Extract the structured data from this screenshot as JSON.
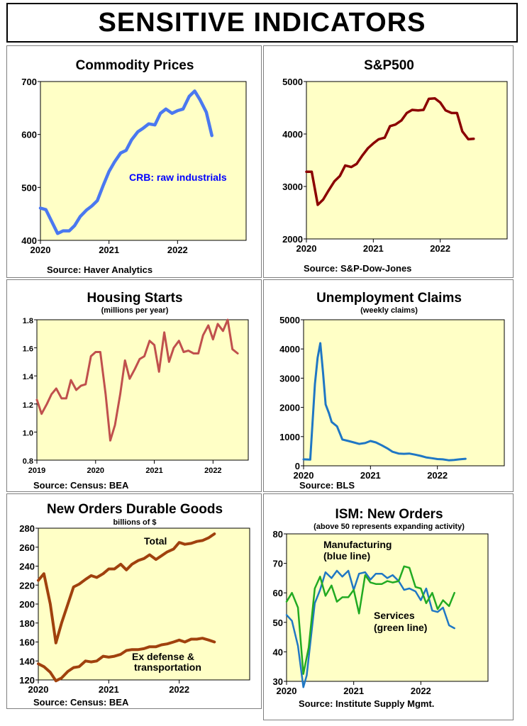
{
  "page_title": "SENSITIVE INDICATORS",
  "chart_data": [
    {
      "id": "commodity",
      "type": "line",
      "title": "Commodity Prices",
      "subtitle": "",
      "source": "Source: Haver Analytics",
      "ylim": [
        400,
        700
      ],
      "xlim": [
        2020,
        2023
      ],
      "y_ticks": [
        "700",
        "600",
        "500",
        "400"
      ],
      "x_ticks": [
        "2020",
        "2021",
        "2022"
      ],
      "grid": false,
      "series": [
        {
          "name": "CRB: raw industrials",
          "color": "#4a78f0",
          "x": [
            2020.0,
            2020.08,
            2020.25,
            2020.33,
            2020.42,
            2020.5,
            2020.58,
            2020.67,
            2020.75,
            2020.83,
            2020.92,
            2021.0,
            2021.08,
            2021.17,
            2021.25,
            2021.33,
            2021.42,
            2021.5,
            2021.58,
            2021.67,
            2021.75,
            2021.83,
            2021.92,
            2022.0,
            2022.08,
            2022.17,
            2022.25,
            2022.33,
            2022.42,
            2022.5
          ],
          "y": [
            461,
            458,
            413,
            418,
            418,
            428,
            445,
            457,
            465,
            475,
            505,
            530,
            548,
            565,
            570,
            590,
            605,
            612,
            620,
            618,
            640,
            648,
            640,
            645,
            648,
            672,
            682,
            665,
            642,
            598
          ]
        }
      ],
      "annotations": [
        {
          "text": "CRB: raw industrials",
          "color": "#0000ff"
        }
      ]
    },
    {
      "id": "sp500",
      "type": "line",
      "title": "S&P500",
      "subtitle": "",
      "source": "Source: S&P-Dow-Jones",
      "ylim": [
        2000,
        5000
      ],
      "xlim": [
        2020,
        2023
      ],
      "y_ticks": [
        "5000",
        "4000",
        "3000",
        "2000"
      ],
      "x_ticks": [
        "2020",
        "2021",
        "2022"
      ],
      "grid": false,
      "series": [
        {
          "name": "",
          "color": "#8b0000",
          "x": [
            2020.0,
            2020.08,
            2020.17,
            2020.25,
            2020.33,
            2020.42,
            2020.5,
            2020.58,
            2020.67,
            2020.75,
            2020.83,
            2020.92,
            2021.0,
            2021.08,
            2021.17,
            2021.25,
            2021.33,
            2021.42,
            2021.5,
            2021.58,
            2021.67,
            2021.75,
            2021.83,
            2021.92,
            2022.0,
            2022.08,
            2022.17,
            2022.25,
            2022.33,
            2022.42,
            2022.5
          ],
          "y": [
            3280,
            3280,
            2650,
            2750,
            2920,
            3100,
            3200,
            3400,
            3370,
            3430,
            3580,
            3730,
            3820,
            3900,
            3930,
            4150,
            4180,
            4260,
            4400,
            4460,
            4450,
            4460,
            4670,
            4680,
            4600,
            4450,
            4400,
            4400,
            4050,
            3900,
            3910
          ]
        }
      ],
      "annotations": []
    },
    {
      "id": "housing",
      "type": "line",
      "title": "Housing Starts",
      "subtitle": "(millions per year)",
      "source": "Source: Census: BEA",
      "ylim": [
        0.8,
        1.8
      ],
      "xlim": [
        2019,
        2022.6
      ],
      "y_ticks": [
        "1.8",
        "1.6",
        "1.4",
        "1.2",
        "1.0",
        "0.8"
      ],
      "x_ticks": [
        "2019",
        "2020",
        "2021",
        "2022"
      ],
      "grid": false,
      "series": [
        {
          "name": "",
          "color": "#c0504d",
          "x": [
            2019.0,
            2019.08,
            2019.17,
            2019.25,
            2019.33,
            2019.42,
            2019.5,
            2019.58,
            2019.67,
            2019.75,
            2019.83,
            2019.92,
            2020.0,
            2020.08,
            2020.17,
            2020.25,
            2020.33,
            2020.42,
            2020.5,
            2020.58,
            2020.67,
            2020.75,
            2020.83,
            2020.92,
            2021.0,
            2021.08,
            2021.17,
            2021.25,
            2021.33,
            2021.42,
            2021.5,
            2021.58,
            2021.67,
            2021.75,
            2021.83,
            2021.92,
            2022.0,
            2022.08,
            2022.17,
            2022.25,
            2022.33,
            2022.42
          ],
          "y": [
            1.23,
            1.13,
            1.2,
            1.27,
            1.31,
            1.24,
            1.24,
            1.37,
            1.3,
            1.33,
            1.34,
            1.54,
            1.57,
            1.57,
            1.27,
            0.94,
            1.05,
            1.27,
            1.51,
            1.38,
            1.45,
            1.52,
            1.54,
            1.65,
            1.62,
            1.43,
            1.71,
            1.5,
            1.6,
            1.65,
            1.57,
            1.58,
            1.56,
            1.56,
            1.69,
            1.76,
            1.66,
            1.77,
            1.72,
            1.8,
            1.59,
            1.56
          ]
        }
      ],
      "annotations": []
    },
    {
      "id": "claims",
      "type": "line",
      "title": "Unemployment Claims",
      "subtitle": "(weekly claims)",
      "source": "Source: BLS",
      "ylim": [
        0,
        5000
      ],
      "xlim": [
        2020,
        2023
      ],
      "y_ticks": [
        "5000",
        "4000",
        "3000",
        "2000",
        "1000",
        "0"
      ],
      "x_ticks": [
        "2020",
        "2021",
        "2022"
      ],
      "grid": false,
      "series": [
        {
          "name": "",
          "color": "#1f77c4",
          "x": [
            2020.0,
            2020.1,
            2020.17,
            2020.21,
            2020.25,
            2020.29,
            2020.33,
            2020.38,
            2020.42,
            2020.5,
            2020.58,
            2020.67,
            2020.75,
            2020.83,
            2020.92,
            2021.0,
            2021.08,
            2021.17,
            2021.25,
            2021.33,
            2021.42,
            2021.5,
            2021.58,
            2021.67,
            2021.75,
            2021.83,
            2021.92,
            2022.0,
            2022.08,
            2022.17,
            2022.25,
            2022.33,
            2022.42
          ],
          "y": [
            220,
            210,
            2800,
            3700,
            4200,
            3200,
            2100,
            1800,
            1500,
            1350,
            900,
            850,
            800,
            750,
            780,
            850,
            800,
            700,
            600,
            480,
            420,
            410,
            420,
            380,
            340,
            290,
            260,
            230,
            220,
            190,
            200,
            220,
            240
          ]
        }
      ],
      "annotations": []
    },
    {
      "id": "durable",
      "type": "line",
      "title": "New Orders Durable Goods",
      "subtitle": "billions of $",
      "source": "Source: Census: BEA",
      "ylim": [
        120,
        280
      ],
      "xlim": [
        2020,
        2023
      ],
      "y_ticks": [
        "280",
        "260",
        "240",
        "220",
        "200",
        "180",
        "160",
        "140",
        "120"
      ],
      "x_ticks": [
        "2020",
        "2021",
        "2022"
      ],
      "grid": false,
      "series": [
        {
          "name": "Total",
          "color": "#a0410d",
          "x": [
            2020.0,
            2020.08,
            2020.17,
            2020.25,
            2020.33,
            2020.42,
            2020.5,
            2020.58,
            2020.67,
            2020.75,
            2020.83,
            2020.92,
            2021.0,
            2021.08,
            2021.17,
            2021.25,
            2021.33,
            2021.42,
            2021.5,
            2021.58,
            2021.67,
            2021.75,
            2021.83,
            2021.92,
            2022.0,
            2022.08,
            2022.17,
            2022.25,
            2022.33,
            2022.42,
            2022.5
          ],
          "y": [
            225,
            232,
            200,
            159,
            180,
            200,
            218,
            221,
            226,
            230,
            228,
            232,
            237,
            237,
            242,
            236,
            242,
            246,
            248,
            252,
            247,
            251,
            255,
            258,
            265,
            263,
            264,
            266,
            267,
            270,
            274
          ]
        },
        {
          "name": "Ex defense & transportation",
          "color": "#a0410d",
          "x": [
            2020.0,
            2020.08,
            2020.17,
            2020.25,
            2020.33,
            2020.42,
            2020.5,
            2020.58,
            2020.67,
            2020.75,
            2020.83,
            2020.92,
            2021.0,
            2021.08,
            2021.17,
            2021.25,
            2021.33,
            2021.42,
            2021.5,
            2021.58,
            2021.67,
            2021.75,
            2021.83,
            2021.92,
            2022.0,
            2022.08,
            2022.17,
            2022.25,
            2022.33,
            2022.42,
            2022.5
          ],
          "y": [
            137,
            134,
            128,
            119,
            122,
            129,
            133,
            134,
            140,
            139,
            140,
            145,
            144,
            145,
            147,
            151,
            152,
            152,
            153,
            155,
            155,
            157,
            158,
            160,
            162,
            160,
            163,
            163,
            164,
            162,
            160
          ]
        }
      ],
      "annotations": [
        {
          "text": "Total"
        },
        {
          "text": "Ex defense &"
        },
        {
          "text": "transportation"
        }
      ]
    },
    {
      "id": "ism",
      "type": "line",
      "title": "ISM: New Orders",
      "subtitle": "(above 50 represents expanding activity)",
      "source": "Source: Institute Supply Mgmt.",
      "ylim": [
        30,
        80
      ],
      "xlim": [
        2020,
        2023
      ],
      "y_ticks": [
        "80",
        "70",
        "60",
        "50",
        "40",
        "30"
      ],
      "x_ticks": [
        "2020",
        "2021",
        "2022"
      ],
      "grid": false,
      "series": [
        {
          "name": "Manufacturing",
          "color": "#1f77c4",
          "x": [
            2020.0,
            2020.08,
            2020.17,
            2020.25,
            2020.3,
            2020.42,
            2020.5,
            2020.58,
            2020.67,
            2020.75,
            2020.83,
            2020.92,
            2021.0,
            2021.08,
            2021.17,
            2021.25,
            2021.33,
            2021.42,
            2021.5,
            2021.58,
            2021.67,
            2021.75,
            2021.83,
            2021.92,
            2022.0,
            2022.08,
            2022.17,
            2022.25,
            2022.33,
            2022.42,
            2022.5
          ],
          "y": [
            52.5,
            50.5,
            42,
            28,
            32,
            56.5,
            61,
            67,
            65,
            67.5,
            65.5,
            67.5,
            61,
            66.5,
            67,
            64.5,
            66.5,
            66.5,
            65,
            66,
            64,
            61,
            61.5,
            60.5,
            57.5,
            61.5,
            54,
            53.5,
            55,
            49,
            48
          ]
        },
        {
          "name": "Services",
          "color": "#22aa22",
          "x": [
            2020.0,
            2020.08,
            2020.17,
            2020.25,
            2020.33,
            2020.42,
            2020.5,
            2020.58,
            2020.67,
            2020.75,
            2020.83,
            2020.92,
            2021.0,
            2021.08,
            2021.17,
            2021.25,
            2021.33,
            2021.42,
            2021.5,
            2021.58,
            2021.67,
            2021.75,
            2021.83,
            2021.92,
            2022.0,
            2022.08,
            2022.17,
            2022.25,
            2022.33,
            2022.42,
            2022.5
          ],
          "y": [
            57,
            60,
            55,
            32.5,
            41.5,
            61.5,
            65.5,
            59,
            62.5,
            57,
            58.5,
            58.5,
            61,
            53,
            66,
            63.5,
            63,
            63,
            64,
            63.5,
            64,
            69,
            68.5,
            62,
            61.5,
            56.5,
            60,
            54.5,
            57.5,
            55.5,
            60
          ]
        }
      ],
      "annotations": [
        {
          "text": "Manufacturing"
        },
        {
          "text": "(blue line)"
        },
        {
          "text": "Services"
        },
        {
          "text": "(green line)"
        }
      ]
    }
  ]
}
